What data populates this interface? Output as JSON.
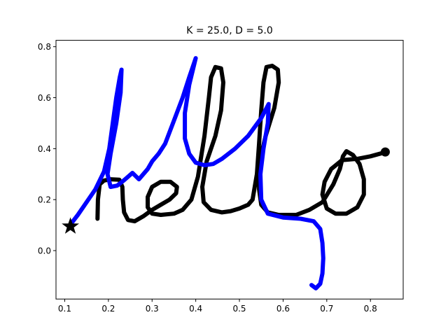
{
  "chart_data": {
    "type": "line",
    "title": "K = 25.0, D = 5.0",
    "xlabel": "",
    "ylabel": "",
    "xlim": [
      0.08,
      0.875
    ],
    "ylim": [
      -0.19,
      0.825
    ],
    "grid": false,
    "legend": "none",
    "x_ticks": [
      {
        "value": 0.1,
        "label": "0.1"
      },
      {
        "value": 0.2,
        "label": "0.2"
      },
      {
        "value": 0.3,
        "label": "0.3"
      },
      {
        "value": 0.4,
        "label": "0.4"
      },
      {
        "value": 0.5,
        "label": "0.5"
      },
      {
        "value": 0.6,
        "label": "0.6"
      },
      {
        "value": 0.7,
        "label": "0.7"
      },
      {
        "value": 0.8,
        "label": "0.8"
      }
    ],
    "y_ticks": [
      {
        "value": 0.0,
        "label": "0.0"
      },
      {
        "value": 0.2,
        "label": "0.2"
      },
      {
        "value": 0.4,
        "label": "0.4"
      },
      {
        "value": 0.6,
        "label": "0.6"
      },
      {
        "value": 0.8,
        "label": "0.8"
      }
    ],
    "series": [
      {
        "color": "#000000",
        "points": [
          [
            0.175,
            0.125
          ],
          [
            0.176,
            0.2
          ],
          [
            0.18,
            0.26
          ],
          [
            0.19,
            0.275
          ],
          [
            0.205,
            0.28
          ],
          [
            0.225,
            0.278
          ],
          [
            0.232,
            0.25
          ],
          [
            0.233,
            0.2
          ],
          [
            0.236,
            0.15
          ],
          [
            0.245,
            0.12
          ],
          [
            0.26,
            0.115
          ],
          [
            0.28,
            0.135
          ],
          [
            0.3,
            0.16
          ],
          [
            0.32,
            0.18
          ],
          [
            0.34,
            0.2
          ],
          [
            0.355,
            0.225
          ],
          [
            0.357,
            0.25
          ],
          [
            0.342,
            0.27
          ],
          [
            0.32,
            0.27
          ],
          [
            0.3,
            0.25
          ],
          [
            0.29,
            0.21
          ],
          [
            0.29,
            0.17
          ],
          [
            0.3,
            0.145
          ],
          [
            0.32,
            0.14
          ],
          [
            0.35,
            0.145
          ],
          [
            0.37,
            0.16
          ],
          [
            0.39,
            0.2
          ],
          [
            0.405,
            0.29
          ],
          [
            0.42,
            0.45
          ],
          [
            0.43,
            0.6
          ],
          [
            0.435,
            0.68
          ],
          [
            0.445,
            0.72
          ],
          [
            0.458,
            0.715
          ],
          [
            0.463,
            0.66
          ],
          [
            0.458,
            0.55
          ],
          [
            0.445,
            0.45
          ],
          [
            0.425,
            0.35
          ],
          [
            0.415,
            0.25
          ],
          [
            0.418,
            0.19
          ],
          [
            0.435,
            0.16
          ],
          [
            0.46,
            0.15
          ],
          [
            0.48,
            0.155
          ],
          [
            0.5,
            0.165
          ],
          [
            0.52,
            0.18
          ],
          [
            0.53,
            0.2
          ],
          [
            0.54,
            0.3
          ],
          [
            0.545,
            0.42
          ],
          [
            0.55,
            0.55
          ],
          [
            0.555,
            0.66
          ],
          [
            0.562,
            0.72
          ],
          [
            0.575,
            0.725
          ],
          [
            0.588,
            0.71
          ],
          [
            0.59,
            0.66
          ],
          [
            0.58,
            0.56
          ],
          [
            0.56,
            0.45
          ],
          [
            0.545,
            0.34
          ],
          [
            0.545,
            0.24
          ],
          [
            0.55,
            0.18
          ],
          [
            0.565,
            0.15
          ],
          [
            0.59,
            0.14
          ],
          [
            0.63,
            0.14
          ],
          [
            0.66,
            0.16
          ],
          [
            0.69,
            0.19
          ],
          [
            0.715,
            0.26
          ],
          [
            0.73,
            0.32
          ],
          [
            0.737,
            0.37
          ],
          [
            0.745,
            0.39
          ],
          [
            0.76,
            0.375
          ],
          [
            0.775,
            0.34
          ],
          [
            0.785,
            0.28
          ],
          [
            0.785,
            0.22
          ],
          [
            0.77,
            0.17
          ],
          [
            0.745,
            0.145
          ],
          [
            0.72,
            0.145
          ],
          [
            0.7,
            0.165
          ],
          [
            0.69,
            0.22
          ],
          [
            0.695,
            0.27
          ],
          [
            0.71,
            0.32
          ],
          [
            0.735,
            0.355
          ],
          [
            0.77,
            0.36
          ],
          [
            0.8,
            0.37
          ],
          [
            0.832,
            0.385
          ]
        ]
      },
      {
        "color": "#0000ff",
        "points": [
          [
            0.112,
            0.1
          ],
          [
            0.13,
            0.14
          ],
          [
            0.15,
            0.19
          ],
          [
            0.17,
            0.24
          ],
          [
            0.19,
            0.31
          ],
          [
            0.202,
            0.4
          ],
          [
            0.21,
            0.5
          ],
          [
            0.218,
            0.6
          ],
          [
            0.226,
            0.68
          ],
          [
            0.23,
            0.71
          ],
          [
            0.228,
            0.62
          ],
          [
            0.218,
            0.5
          ],
          [
            0.205,
            0.38
          ],
          [
            0.198,
            0.3
          ],
          [
            0.205,
            0.25
          ],
          [
            0.22,
            0.255
          ],
          [
            0.235,
            0.275
          ],
          [
            0.255,
            0.305
          ],
          [
            0.27,
            0.28
          ],
          [
            0.29,
            0.32
          ],
          [
            0.3,
            0.35
          ],
          [
            0.315,
            0.38
          ],
          [
            0.33,
            0.42
          ],
          [
            0.35,
            0.51
          ],
          [
            0.37,
            0.6
          ],
          [
            0.385,
            0.68
          ],
          [
            0.395,
            0.73
          ],
          [
            0.4,
            0.755
          ],
          [
            0.395,
            0.72
          ],
          [
            0.385,
            0.65
          ],
          [
            0.375,
            0.54
          ],
          [
            0.375,
            0.44
          ],
          [
            0.385,
            0.38
          ],
          [
            0.4,
            0.345
          ],
          [
            0.42,
            0.335
          ],
          [
            0.44,
            0.34
          ],
          [
            0.46,
            0.36
          ],
          [
            0.49,
            0.4
          ],
          [
            0.52,
            0.45
          ],
          [
            0.55,
            0.52
          ],
          [
            0.567,
            0.575
          ],
          [
            0.565,
            0.5
          ],
          [
            0.555,
            0.4
          ],
          [
            0.548,
            0.3
          ],
          [
            0.55,
            0.2
          ],
          [
            0.565,
            0.145
          ],
          [
            0.6,
            0.13
          ],
          [
            0.64,
            0.125
          ],
          [
            0.67,
            0.115
          ],
          [
            0.685,
            0.085
          ],
          [
            0.69,
            0.03
          ],
          [
            0.692,
            -0.03
          ],
          [
            0.69,
            -0.09
          ],
          [
            0.685,
            -0.13
          ],
          [
            0.675,
            -0.148
          ],
          [
            0.665,
            -0.135
          ]
        ]
      }
    ],
    "markers": [
      {
        "shape": "star",
        "x": 0.113,
        "y": 0.095,
        "color": "#000000"
      },
      {
        "shape": "circle",
        "x": 0.834,
        "y": 0.387,
        "color": "#000000"
      }
    ]
  }
}
